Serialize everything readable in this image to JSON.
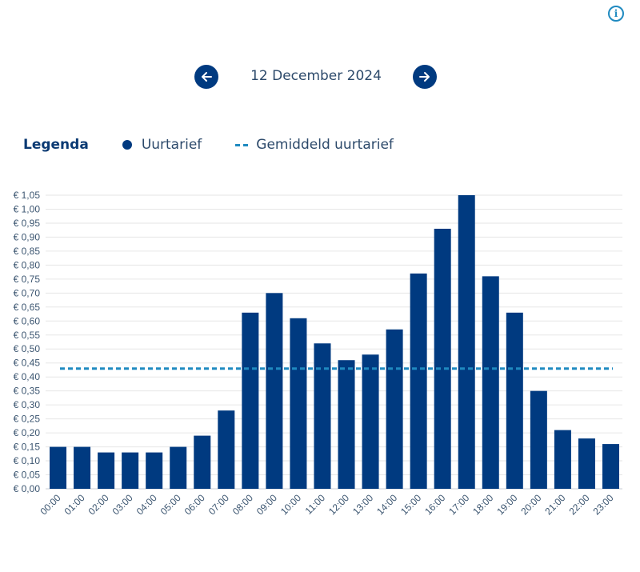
{
  "header": {
    "info_icon": "info-icon",
    "info_glyph": "i"
  },
  "nav": {
    "prev_icon": "arrow-left-icon",
    "next_icon": "arrow-right-icon",
    "date": "12 December 2024"
  },
  "legend": {
    "title": "Legenda",
    "items": [
      {
        "label": "Uurtarief",
        "marker": "dot",
        "color": "#003a80"
      },
      {
        "label": "Gemiddeld uurtarief",
        "marker": "dashed-line",
        "color": "#1f8ac0"
      }
    ]
  },
  "chart_data": {
    "type": "bar",
    "title": "",
    "xlabel": "",
    "ylabel": "",
    "categories": [
      "00:00",
      "01:00",
      "02:00",
      "03:00",
      "04:00",
      "05:00",
      "06:00",
      "07:00",
      "08:00",
      "09:00",
      "10:00",
      "11:00",
      "12:00",
      "13:00",
      "14:00",
      "15:00",
      "16:00",
      "17:00",
      "18:00",
      "19:00",
      "20:00",
      "21:00",
      "22:00",
      "23:00"
    ],
    "series": [
      {
        "name": "Uurtarief",
        "color": "#003a80",
        "values": [
          0.15,
          0.15,
          0.13,
          0.13,
          0.13,
          0.15,
          0.19,
          0.28,
          0.63,
          0.7,
          0.61,
          0.52,
          0.46,
          0.48,
          0.57,
          0.77,
          0.93,
          1.05,
          0.76,
          0.63,
          0.35,
          0.21,
          0.18,
          0.16
        ]
      }
    ],
    "reference_lines": [
      {
        "name": "Gemiddeld uurtarief",
        "value": 0.43,
        "style": "dashed",
        "color": "#1f8ac0"
      }
    ],
    "ylim": [
      0,
      1.05
    ],
    "ytick_step": 0.05,
    "ytick_prefix": "€ ",
    "ytick_decimal_separator": ",",
    "yticks": [
      "€ 0,00",
      "€ 0,05",
      "€ 0,10",
      "€ 0,15",
      "€ 0,20",
      "€ 0,25",
      "€ 0,30",
      "€ 0,35",
      "€ 0,40",
      "€ 0,45",
      "€ 0,50",
      "€ 0,55",
      "€ 0,60",
      "€ 0,65",
      "€ 0,70",
      "€ 0,75",
      "€ 0,80",
      "€ 0,85",
      "€ 0,90",
      "€ 0,95",
      "€ 1,00",
      "€ 1,05"
    ],
    "grid": true,
    "xtick_rotation": "-45deg",
    "legend_position": "top-left"
  }
}
